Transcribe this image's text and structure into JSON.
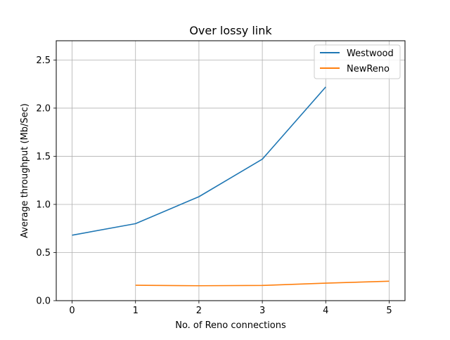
{
  "chart_data": {
    "type": "line",
    "title": "Over lossy link",
    "xlabel": "No. of Reno connections",
    "ylabel": "Average throughput (Mb/Sec)",
    "xlim": [
      -0.25,
      5.25
    ],
    "ylim": [
      0,
      2.7
    ],
    "xticks": [
      0,
      1,
      2,
      3,
      4,
      5
    ],
    "xtick_labels": [
      "0",
      "1",
      "2",
      "3",
      "4",
      "5"
    ],
    "yticks": [
      0,
      0.5,
      1.0,
      1.5,
      2.0,
      2.5
    ],
    "ytick_labels": [
      "0.0",
      "0.5",
      "1.0",
      "1.5",
      "2.0",
      "2.5"
    ],
    "grid": true,
    "legend_position": "top-right",
    "series": [
      {
        "name": "Westwood",
        "color": "#1f77b4",
        "x": [
          0,
          1,
          2,
          3,
          4
        ],
        "values": [
          0.68,
          0.8,
          1.08,
          1.47,
          2.22
        ]
      },
      {
        "name": "NewReno",
        "color": "#ff7f0e",
        "x": [
          1,
          2,
          3,
          4,
          5
        ],
        "values": [
          0.16,
          0.155,
          0.158,
          0.182,
          0.202
        ]
      }
    ]
  }
}
